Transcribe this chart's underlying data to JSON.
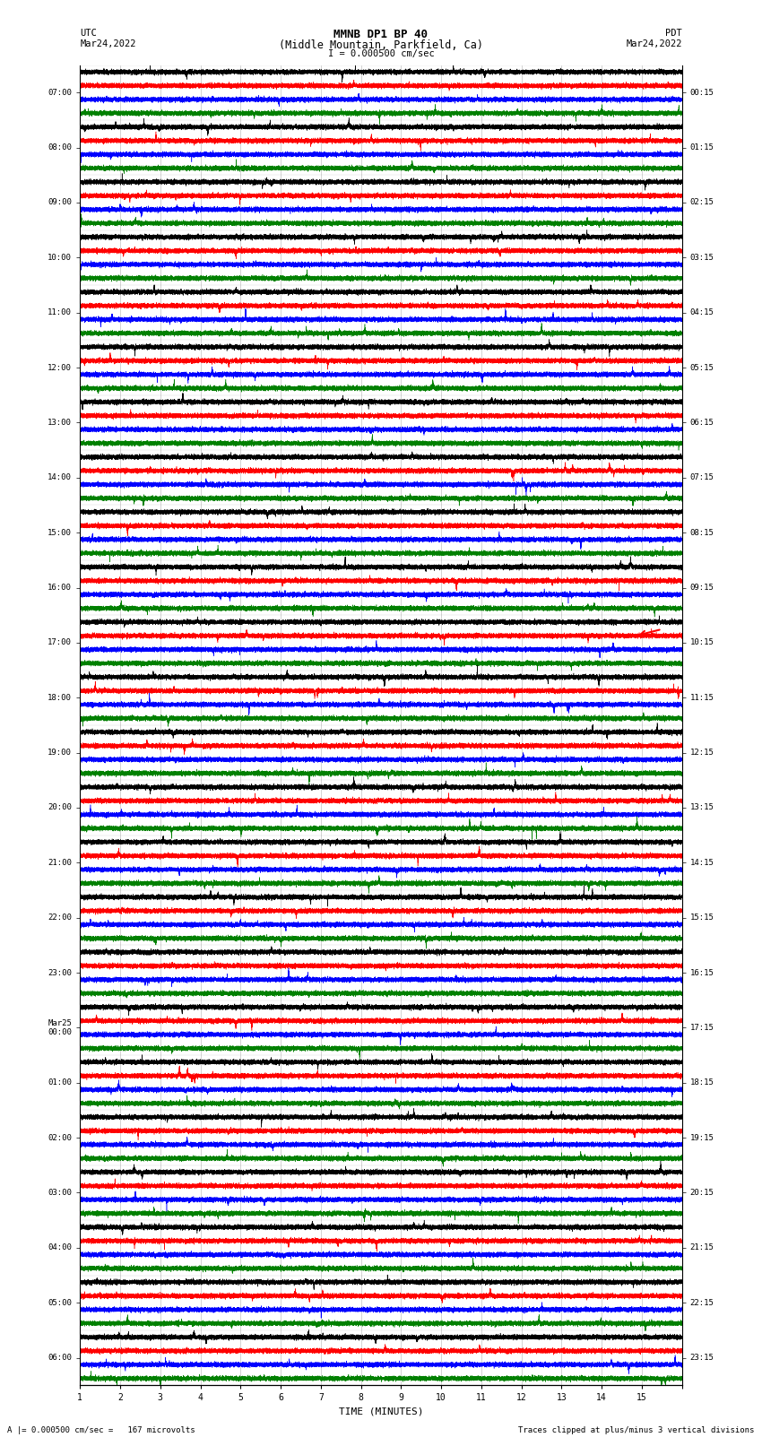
{
  "title_line1": "MMNB DP1 BP 40",
  "title_line2": "(Middle Mountain, Parkfield, Ca)",
  "scale_label": "I = 0.000500 cm/sec",
  "footer_left": "A |= 0.000500 cm/sec =   167 microvolts",
  "footer_right": "Traces clipped at plus/minus 3 vertical divisions",
  "xlabel": "TIME (MINUTES)",
  "utc_labels": [
    "07:00",
    "08:00",
    "09:00",
    "10:00",
    "11:00",
    "12:00",
    "13:00",
    "14:00",
    "15:00",
    "16:00",
    "17:00",
    "18:00",
    "19:00",
    "20:00",
    "21:00",
    "22:00",
    "23:00",
    "Mar25\n00:00",
    "01:00",
    "02:00",
    "03:00",
    "04:00",
    "05:00",
    "06:00"
  ],
  "pdt_labels": [
    "00:15",
    "01:15",
    "02:15",
    "03:15",
    "04:15",
    "05:15",
    "06:15",
    "07:15",
    "08:15",
    "09:15",
    "10:15",
    "11:15",
    "12:15",
    "13:15",
    "14:15",
    "15:15",
    "16:15",
    "17:15",
    "18:15",
    "19:15",
    "20:15",
    "21:15",
    "22:15",
    "23:15"
  ],
  "n_rows": 24,
  "n_traces_per_row": 4,
  "colors": [
    "black",
    "red",
    "blue",
    "green"
  ],
  "trace_duration_minutes": 15,
  "sample_rate": 40,
  "amplitude_scale": 0.1,
  "noise_base": 0.025,
  "event_row": 10,
  "event_arrow_color": "red",
  "background_color": "white",
  "fig_width": 8.5,
  "fig_height": 16.13,
  "dpi": 100,
  "left_header_line1": "UTC",
  "left_header_line2": "Mar24,2022",
  "right_header_line1": "PDT",
  "right_header_line2": "Mar24,2022"
}
